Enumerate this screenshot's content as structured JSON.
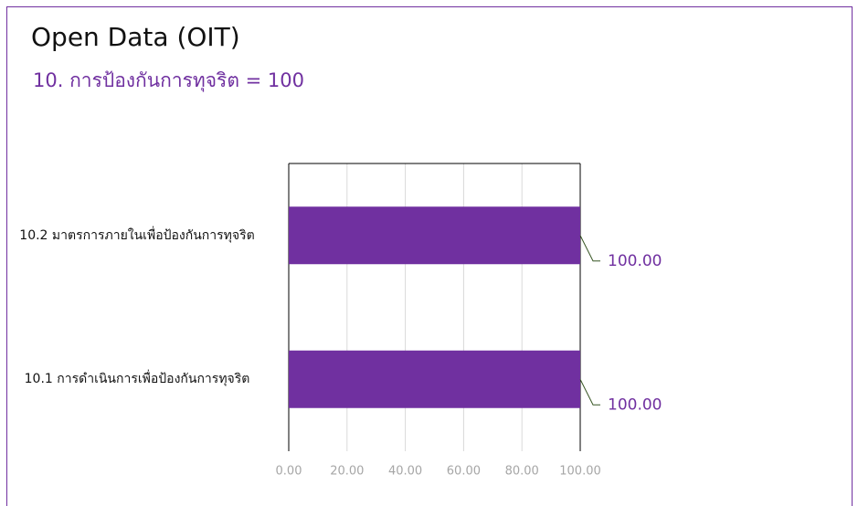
{
  "chart_data": {
    "type": "barh",
    "title": "Open Data (OIT)",
    "subtitle": "10. การป้องกันการทุจริต = 100",
    "categories": [
      "10.2 มาตรการภายในเพื่อป้องกันการทุจริต",
      "10.1 การดำเนินการเพื่อป้องกันการทุจริต"
    ],
    "values": [
      100,
      100
    ],
    "value_labels": [
      "100.00",
      "100.00"
    ],
    "color": "#7030a0",
    "xlim": [
      0,
      100
    ],
    "xticks": [
      {
        "value": 0,
        "label": "0.00"
      },
      {
        "value": 20,
        "label": "20.00"
      },
      {
        "value": 40,
        "label": "40.00"
      },
      {
        "value": 60,
        "label": "60.00"
      },
      {
        "value": 80,
        "label": "80.00"
      },
      {
        "value": 100,
        "label": "100.00"
      }
    ],
    "grid": true
  }
}
